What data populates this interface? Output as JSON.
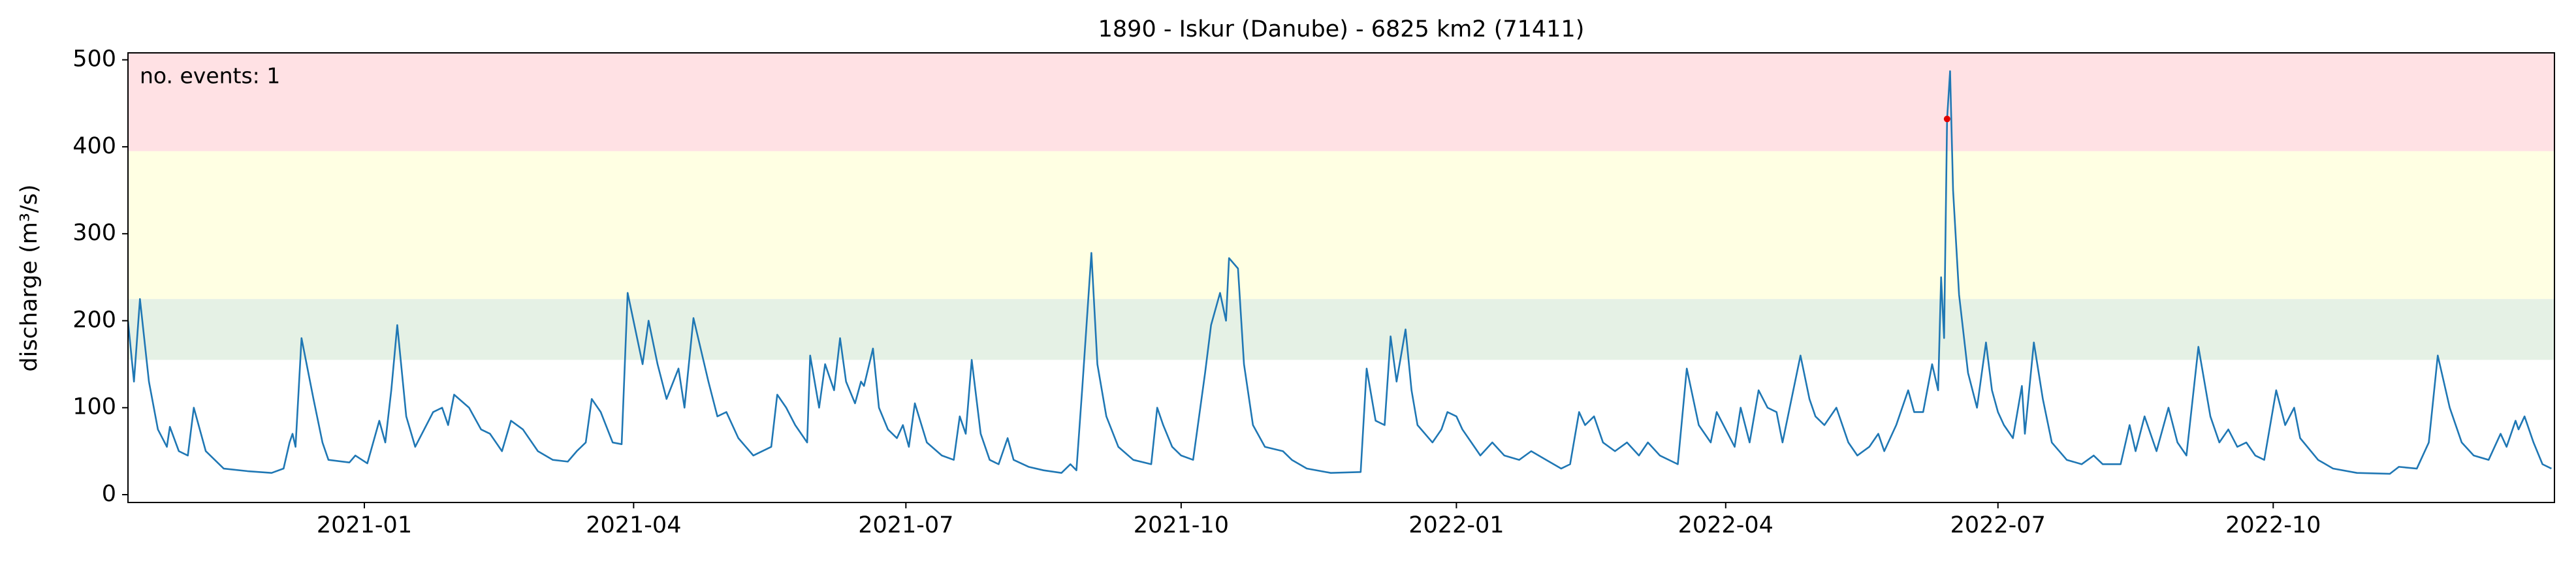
{
  "chart_data": {
    "type": "line",
    "title": "1890 - Iskur (Danube) - 6825 km2 (71411)",
    "ylabel": "discharge (m³/s)",
    "color": "#1f77b4",
    "x": [
      "2020-10-14",
      "2020-10-16",
      "2020-10-18",
      "2020-10-21",
      "2020-10-24",
      "2020-10-27",
      "2020-10-28",
      "2020-10-31",
      "2020-11-03",
      "2020-11-05",
      "2020-11-09",
      "2020-11-15",
      "2020-11-23",
      "2020-12-01",
      "2020-12-05",
      "2020-12-07",
      "2020-12-08",
      "2020-12-09",
      "2020-12-11",
      "2020-12-15",
      "2020-12-18",
      "2020-12-20",
      "2020-12-27",
      "2020-12-29",
      "2021-01-02",
      "2021-01-06",
      "2021-01-08",
      "2021-01-10",
      "2021-01-12",
      "2021-01-15",
      "2021-01-18",
      "2021-01-24",
      "2021-01-27",
      "2021-01-29",
      "2021-01-31",
      "2021-02-05",
      "2021-02-09",
      "2021-02-12",
      "2021-02-16",
      "2021-02-19",
      "2021-02-23",
      "2021-02-28",
      "2021-03-05",
      "2021-03-10",
      "2021-03-13",
      "2021-03-16",
      "2021-03-18",
      "2021-03-21",
      "2021-03-25",
      "2021-03-28",
      "2021-03-30",
      "2021-04-04",
      "2021-04-06",
      "2021-04-09",
      "2021-04-12",
      "2021-04-16",
      "2021-04-18",
      "2021-04-21",
      "2021-04-26",
      "2021-04-29",
      "2021-05-02",
      "2021-05-06",
      "2021-05-11",
      "2021-05-17",
      "2021-05-19",
      "2021-05-22",
      "2021-05-25",
      "2021-05-29",
      "2021-05-30",
      "2021-06-02",
      "2021-06-04",
      "2021-06-07",
      "2021-06-09",
      "2021-06-11",
      "2021-06-14",
      "2021-06-16",
      "2021-06-17",
      "2021-06-20",
      "2021-06-22",
      "2021-06-25",
      "2021-06-28",
      "2021-06-30",
      "2021-07-02",
      "2021-07-04",
      "2021-07-08",
      "2021-07-13",
      "2021-07-17",
      "2021-07-19",
      "2021-07-21",
      "2021-07-23",
      "2021-07-26",
      "2021-07-29",
      "2021-08-01",
      "2021-08-04",
      "2021-08-06",
      "2021-08-11",
      "2021-08-16",
      "2021-08-22",
      "2021-08-25",
      "2021-08-27",
      "2021-08-29",
      "2021-09-01",
      "2021-09-03",
      "2021-09-06",
      "2021-09-10",
      "2021-09-15",
      "2021-09-21",
      "2021-09-23",
      "2021-09-25",
      "2021-09-28",
      "2021-10-01",
      "2021-10-05",
      "2021-10-09",
      "2021-10-11",
      "2021-10-14",
      "2021-10-16",
      "2021-10-17",
      "2021-10-20",
      "2021-10-22",
      "2021-10-25",
      "2021-10-29",
      "2021-11-04",
      "2021-11-07",
      "2021-11-12",
      "2021-11-20",
      "2021-11-30",
      "2021-12-02",
      "2021-12-05",
      "2021-12-08",
      "2021-12-10",
      "2021-12-12",
      "2021-12-15",
      "2021-12-17",
      "2021-12-19",
      "2021-12-24",
      "2021-12-27",
      "2021-12-29",
      "2022-01-01",
      "2022-01-03",
      "2022-01-06",
      "2022-01-09",
      "2022-01-13",
      "2022-01-17",
      "2022-01-22",
      "2022-01-26",
      "2022-01-31",
      "2022-02-05",
      "2022-02-08",
      "2022-02-11",
      "2022-02-13",
      "2022-02-16",
      "2022-02-19",
      "2022-02-23",
      "2022-02-27",
      "2022-03-03",
      "2022-03-06",
      "2022-03-10",
      "2022-03-16",
      "2022-03-19",
      "2022-03-23",
      "2022-03-27",
      "2022-03-29",
      "2022-04-01",
      "2022-04-04",
      "2022-04-06",
      "2022-04-09",
      "2022-04-12",
      "2022-04-15",
      "2022-04-18",
      "2022-04-20",
      "2022-04-23",
      "2022-04-26",
      "2022-04-29",
      "2022-05-01",
      "2022-05-04",
      "2022-05-08",
      "2022-05-12",
      "2022-05-15",
      "2022-05-19",
      "2022-05-22",
      "2022-05-24",
      "2022-05-28",
      "2022-06-01",
      "2022-06-03",
      "2022-06-06",
      "2022-06-09",
      "2022-06-11",
      "2022-06-12",
      "2022-06-13",
      "2022-06-14",
      "2022-06-15",
      "2022-06-16",
      "2022-06-18",
      "2022-06-21",
      "2022-06-24",
      "2022-06-27",
      "2022-06-29",
      "2022-07-01",
      "2022-07-03",
      "2022-07-06",
      "2022-07-09",
      "2022-07-10",
      "2022-07-13",
      "2022-07-16",
      "2022-07-19",
      "2022-07-24",
      "2022-07-29",
      "2022-08-02",
      "2022-08-05",
      "2022-08-11",
      "2022-08-14",
      "2022-08-16",
      "2022-08-19",
      "2022-08-23",
      "2022-08-27",
      "2022-08-30",
      "2022-09-02",
      "2022-09-06",
      "2022-09-10",
      "2022-09-13",
      "2022-09-16",
      "2022-09-19",
      "2022-09-22",
      "2022-09-25",
      "2022-09-28",
      "2022-10-02",
      "2022-10-05",
      "2022-10-08",
      "2022-10-10",
      "2022-10-16",
      "2022-10-21",
      "2022-10-29",
      "2022-11-09",
      "2022-11-12",
      "2022-11-18",
      "2022-11-22",
      "2022-11-25",
      "2022-11-29",
      "2022-12-03",
      "2022-12-07",
      "2022-12-12",
      "2022-12-16",
      "2022-12-18",
      "2022-12-21",
      "2022-12-22",
      "2022-12-24",
      "2022-12-27",
      "2022-12-30",
      "2023-01-02"
    ],
    "values": [
      200,
      130,
      225,
      130,
      75,
      55,
      78,
      50,
      45,
      100,
      50,
      30,
      27,
      25,
      30,
      60,
      70,
      55,
      180,
      110,
      60,
      40,
      37,
      45,
      36,
      85,
      60,
      120,
      195,
      90,
      55,
      95,
      100,
      80,
      115,
      100,
      75,
      70,
      50,
      85,
      75,
      50,
      40,
      38,
      50,
      60,
      110,
      95,
      60,
      58,
      232,
      150,
      200,
      150,
      110,
      145,
      100,
      203,
      130,
      90,
      95,
      65,
      45,
      55,
      115,
      100,
      80,
      60,
      160,
      100,
      150,
      120,
      180,
      130,
      105,
      130,
      125,
      168,
      100,
      75,
      65,
      80,
      55,
      105,
      60,
      45,
      40,
      90,
      70,
      155,
      70,
      40,
      35,
      65,
      40,
      32,
      28,
      25,
      35,
      28,
      125,
      278,
      150,
      90,
      55,
      40,
      35,
      100,
      80,
      55,
      45,
      40,
      140,
      195,
      232,
      200,
      272,
      260,
      150,
      80,
      55,
      50,
      40,
      30,
      25,
      26,
      145,
      85,
      80,
      182,
      130,
      190,
      120,
      80,
      60,
      75,
      95,
      90,
      75,
      60,
      45,
      60,
      45,
      40,
      50,
      40,
      30,
      35,
      95,
      80,
      90,
      60,
      50,
      60,
      45,
      60,
      45,
      35,
      145,
      80,
      60,
      95,
      75,
      55,
      100,
      60,
      120,
      100,
      95,
      60,
      110,
      160,
      110,
      90,
      80,
      100,
      60,
      45,
      55,
      70,
      50,
      80,
      120,
      95,
      95,
      150,
      120,
      250,
      180,
      432,
      487,
      350,
      230,
      140,
      100,
      175,
      120,
      95,
      80,
      65,
      125,
      70,
      175,
      110,
      60,
      40,
      35,
      45,
      35,
      35,
      80,
      50,
      90,
      50,
      100,
      60,
      45,
      170,
      90,
      60,
      75,
      55,
      60,
      45,
      40,
      120,
      80,
      100,
      65,
      40,
      30,
      25,
      24,
      32,
      30,
      60,
      160,
      100,
      60,
      45,
      40,
      70,
      55,
      85,
      75,
      90,
      60,
      35,
      30
    ],
    "xlim": [
      "2020-10-14",
      "2023-01-03"
    ],
    "ylim": [
      -9,
      508
    ],
    "yticks": [
      0,
      100,
      200,
      300,
      400,
      500
    ],
    "xticks": [
      "2021-01",
      "2021-04",
      "2021-07",
      "2021-10",
      "2022-01",
      "2022-04",
      "2022-07",
      "2022-10"
    ],
    "bands": [
      {
        "from": 155,
        "to": 225,
        "color": "#e5f1e5"
      },
      {
        "from": 225,
        "to": 395,
        "color": "#ffffe3"
      },
      {
        "from": 395,
        "to": 508,
        "color": "#ffe1e4"
      }
    ],
    "events": {
      "x": [
        "2022-06-14"
      ],
      "values": [
        432
      ],
      "color": "#e00000"
    },
    "annotation": "no. events: 1",
    "annotation_color": "#e00000"
  }
}
